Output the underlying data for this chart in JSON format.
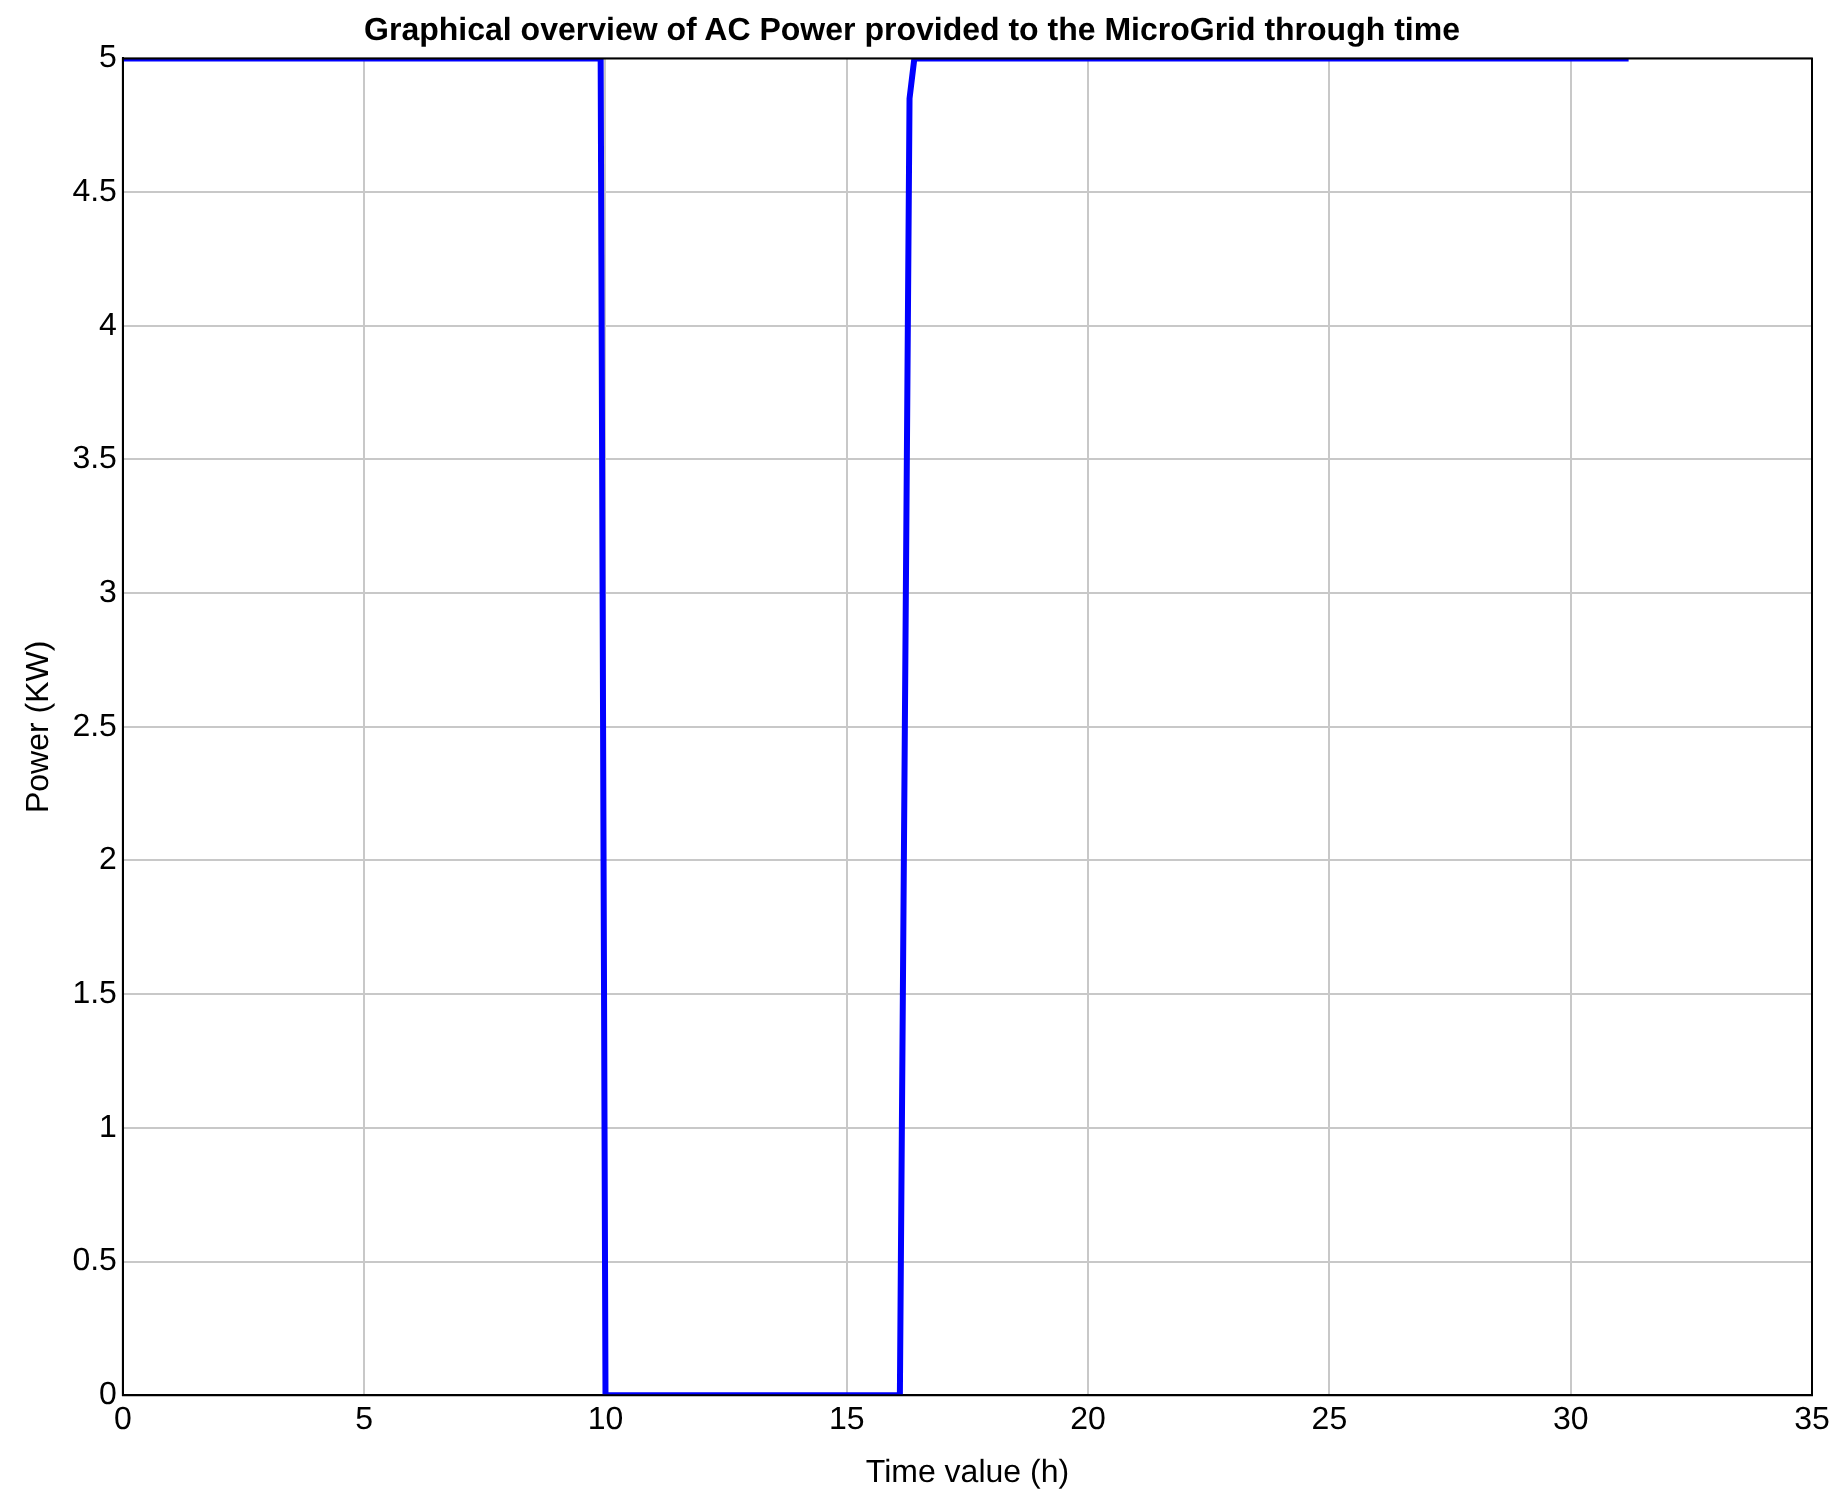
{
  "chart_data": {
    "type": "line",
    "title": "Graphical overview of AC Power provided to the MicroGrid through time",
    "xlabel": "Time value (h)",
    "ylabel": "Power (KW)",
    "x": [
      0,
      9.9,
      10,
      16.1,
      16.3,
      16.4,
      31.2
    ],
    "series": [
      {
        "color": "#0000ff",
        "values": [
          5,
          5,
          0,
          0,
          4.85,
          5,
          5
        ]
      }
    ],
    "xlim": [
      0,
      35
    ],
    "xticks": [
      0,
      5,
      10,
      15,
      20,
      25,
      30,
      35
    ],
    "ylim": [
      0,
      5
    ],
    "yticks": [
      0,
      0.5,
      1,
      1.5,
      2,
      2.5,
      3,
      3.5,
      4,
      4.5,
      5
    ],
    "grid": true,
    "legend": false,
    "marker": "none",
    "line_style": "solid"
  }
}
